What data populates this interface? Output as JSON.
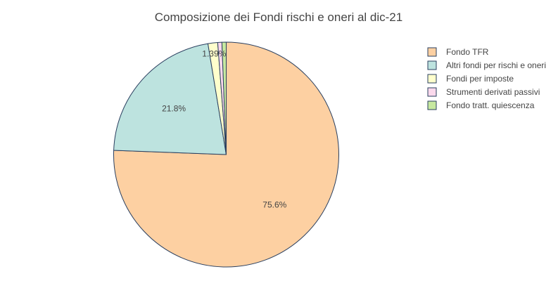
{
  "chart_data": {
    "type": "pie",
    "title": "Composizione dei Fondi rischi e oneri al dic-21",
    "start_angle_deg": 90,
    "direction": "clockwise",
    "stroke_color": "#2a3f5f",
    "legend_position": "top-right",
    "slices": [
      {
        "label": "Fondo TFR",
        "value": 75.6,
        "text": "75.6%",
        "color": "#fdd0a2"
      },
      {
        "label": "Altri fondi per rischi e oneri",
        "value": 21.8,
        "text": "21.8%",
        "color": "#bde3df"
      },
      {
        "label": "Fondi per imposte",
        "value": 1.39,
        "text": "1.39%",
        "color": "#ffffcc"
      },
      {
        "label": "Strumenti derivati passivi",
        "value": 0.6,
        "text": "",
        "color": "#fbd9ec"
      },
      {
        "label": "Fondo tratt. quiescenza",
        "value": 0.61,
        "text": "",
        "color": "#c7e9a0"
      }
    ]
  }
}
